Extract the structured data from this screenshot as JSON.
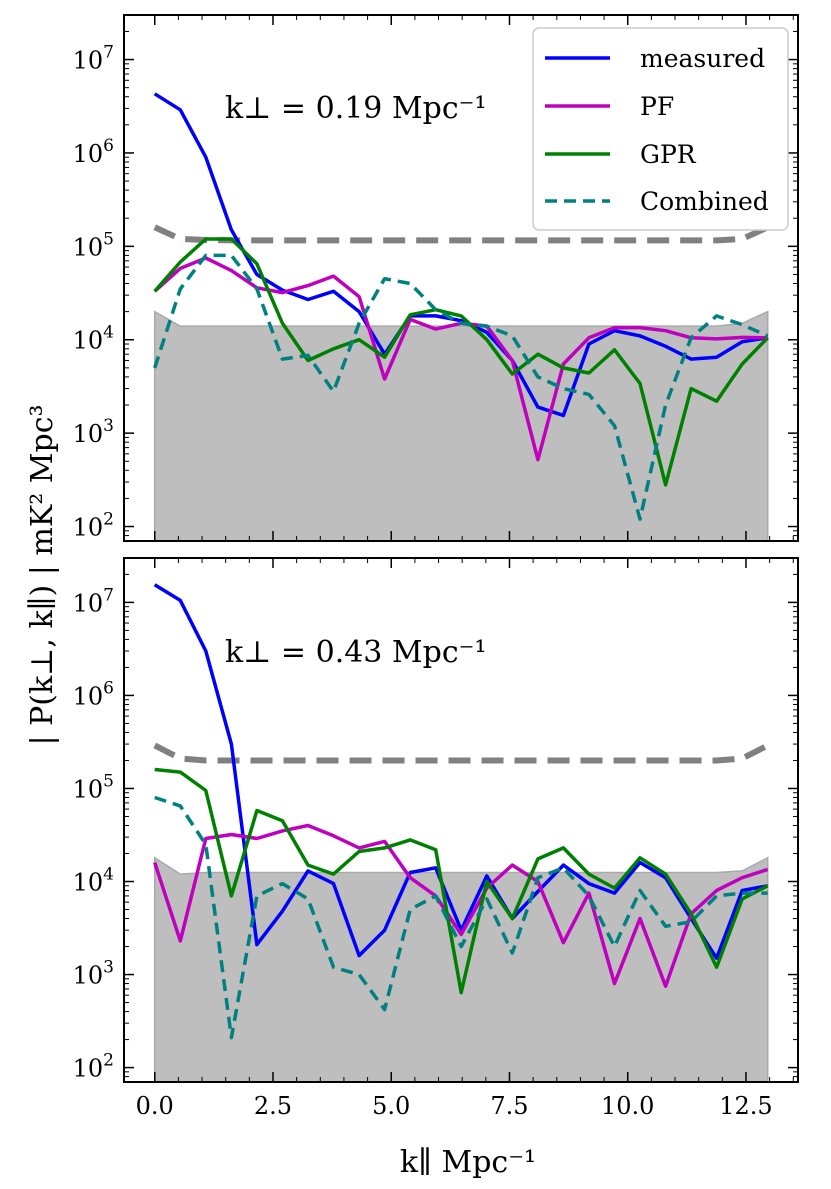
{
  "figure": {
    "ylabel": "| P(k⊥, k∥) | mK² Mpc³",
    "xlabel": "k∥ Mpc⁻¹"
  },
  "legend": [
    {
      "name": "measured",
      "color": "#0000ff",
      "dash": "solid"
    },
    {
      "name": "PF",
      "color": "#bf00bf",
      "dash": "solid"
    },
    {
      "name": "GPR",
      "color": "#008000",
      "dash": "solid"
    },
    {
      "name": "Combined",
      "color": "#008080",
      "dash": "dashed"
    }
  ],
  "chart_data": [
    {
      "type": "line",
      "annotation": "k⊥ = 0.19 Mpc⁻¹",
      "xlim": [
        -0.65,
        13.6
      ],
      "ylim": [
        70,
        30000000
      ],
      "yscale": "log",
      "xticks": [
        "0.0",
        "2.5",
        "5.0",
        "7.5",
        "10.0",
        "12.5"
      ],
      "x": [
        0.0,
        0.54,
        1.08,
        1.62,
        2.16,
        2.7,
        3.24,
        3.78,
        4.32,
        4.86,
        5.4,
        5.94,
        6.48,
        7.02,
        7.56,
        8.1,
        8.64,
        9.18,
        9.72,
        10.26,
        10.8,
        11.34,
        11.88,
        12.42,
        12.96
      ],
      "series": [
        {
          "name": "measured",
          "values": [
            4300000,
            2900000,
            900000,
            150000,
            50000,
            34000,
            27000,
            33000,
            20000,
            7000,
            18000,
            18000,
            16000,
            12000,
            6000,
            1900,
            1550,
            9000,
            12500,
            11000,
            8500,
            6200,
            6500,
            9500,
            10500
          ]
        },
        {
          "name": "PF",
          "values": [
            33000,
            58000,
            75000,
            55000,
            36000,
            32000,
            38000,
            48000,
            29000,
            3800,
            16500,
            13000,
            15000,
            14000,
            6000,
            520,
            5500,
            10500,
            13500,
            13500,
            12500,
            10500,
            10200,
            10600,
            10500
          ]
        },
        {
          "name": "GPR",
          "values": [
            33000,
            68000,
            120000,
            120000,
            65000,
            15000,
            6000,
            8000,
            10000,
            6500,
            18500,
            21000,
            18000,
            10000,
            4300,
            7000,
            5000,
            4400,
            7800,
            3400,
            280,
            3000,
            2200,
            5500,
            10500
          ]
        },
        {
          "name": "Combined",
          "values": [
            5000,
            35000,
            80000,
            80000,
            35000,
            6200,
            6800,
            2800,
            15000,
            45000,
            40000,
            21000,
            15000,
            14000,
            11000,
            4000,
            3000,
            2600,
            1200,
            120,
            2000,
            10500,
            18000,
            14500,
            11000
          ]
        }
      ],
      "noise_level": [
        20000,
        14000,
        14000,
        14000,
        14000,
        14000,
        14000,
        14000,
        14000,
        14000,
        14000,
        14000,
        14000,
        14000,
        14000,
        14000,
        14000,
        14000,
        14000,
        14000,
        14000,
        14000,
        14000,
        15000,
        20000
      ],
      "threshold": [
        160000,
        120000,
        117000,
        116000,
        116000,
        116000,
        116000,
        116000,
        116000,
        116000,
        116000,
        116000,
        116000,
        116000,
        116000,
        116000,
        116000,
        116000,
        116000,
        116000,
        116000,
        116000,
        116000,
        120000,
        160000
      ]
    },
    {
      "type": "line",
      "annotation": "k⊥ = 0.43 Mpc⁻¹",
      "xlim": [
        -0.65,
        13.6
      ],
      "ylim": [
        70,
        30000000
      ],
      "yscale": "log",
      "xticks": [
        "0.0",
        "2.5",
        "5.0",
        "7.5",
        "10.0",
        "12.5"
      ],
      "x": [
        0.0,
        0.54,
        1.08,
        1.62,
        2.16,
        2.7,
        3.24,
        3.78,
        4.32,
        4.86,
        5.4,
        5.94,
        6.48,
        7.02,
        7.56,
        8.1,
        8.64,
        9.18,
        9.72,
        10.26,
        10.8,
        11.34,
        11.88,
        12.42,
        12.96
      ],
      "series": [
        {
          "name": "measured",
          "values": [
            15500000,
            10500000,
            3000000,
            300000,
            2100,
            4800,
            13000,
            9500,
            1600,
            3000,
            12500,
            14000,
            3000,
            11500,
            4000,
            7800,
            15000,
            9500,
            7500,
            16000,
            11000,
            4000,
            1500,
            8000,
            9000
          ]
        },
        {
          "name": "PF",
          "values": [
            16000,
            2300,
            29000,
            32000,
            29000,
            35000,
            40000,
            31000,
            23000,
            27000,
            11000,
            7000,
            2700,
            8500,
            15000,
            10000,
            2200,
            7500,
            800,
            4000,
            750,
            4500,
            8000,
            11000,
            13500
          ]
        },
        {
          "name": "GPR",
          "values": [
            160000,
            150000,
            95000,
            7000,
            58000,
            45000,
            15000,
            12000,
            21000,
            23000,
            28000,
            22000,
            640,
            10000,
            4000,
            17500,
            23000,
            12000,
            8500,
            18000,
            12000,
            4500,
            1200,
            6500,
            9000
          ]
        },
        {
          "name": "Combined",
          "values": [
            80000,
            65000,
            25000,
            210,
            7000,
            9500,
            6500,
            1200,
            1000,
            420,
            5000,
            7000,
            2000,
            6500,
            1700,
            11000,
            14000,
            7000,
            2000,
            8000,
            3300,
            3700,
            7000,
            7500,
            7500
          ]
        }
      ],
      "noise_level": [
        18000,
        12000,
        12500,
        12500,
        12500,
        12500,
        12500,
        12500,
        12500,
        12500,
        12500,
        12500,
        12500,
        12500,
        12500,
        12500,
        12500,
        12500,
        12500,
        12500,
        12500,
        12500,
        12500,
        13000,
        18000
      ],
      "threshold": [
        290000,
        210000,
        200000,
        200000,
        200000,
        200000,
        200000,
        200000,
        200000,
        200000,
        200000,
        200000,
        200000,
        200000,
        200000,
        200000,
        200000,
        200000,
        200000,
        200000,
        200000,
        200000,
        200000,
        210000,
        290000
      ]
    }
  ]
}
